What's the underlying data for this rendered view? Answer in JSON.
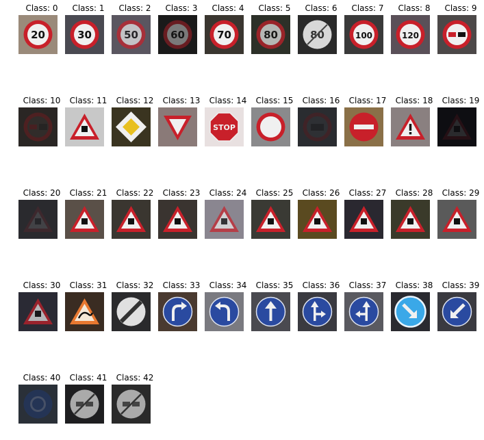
{
  "grid": {
    "label_prefix": "Class: ",
    "cells": [
      {
        "label": "Class: 0",
        "sign": "speed",
        "text": "20",
        "bg": "#9a8a7a"
      },
      {
        "label": "Class: 1",
        "sign": "speed",
        "text": "30",
        "bg": "#4a4a52"
      },
      {
        "label": "Class: 2",
        "sign": "speed",
        "text": "50",
        "bg": "#5a5660",
        "dim": true
      },
      {
        "label": "Class: 3",
        "sign": "speed",
        "text": "60",
        "bg": "#1a1a1a",
        "dark": true
      },
      {
        "label": "Class: 4",
        "sign": "speed",
        "text": "70",
        "bg": "#3a3630"
      },
      {
        "label": "Class: 5",
        "sign": "speed",
        "text": "80",
        "bg": "#2c3028",
        "dim": true
      },
      {
        "label": "Class: 6",
        "sign": "end-speed",
        "text": "80",
        "bg": "#2a2a2a"
      },
      {
        "label": "Class: 7",
        "sign": "speed",
        "text": "100",
        "bg": "#3a3a3a"
      },
      {
        "label": "Class: 8",
        "sign": "speed",
        "text": "120",
        "bg": "#5a5058"
      },
      {
        "label": "Class: 9",
        "sign": "no-passing",
        "bg": "#4c4848"
      },
      {
        "label": "Class: 10",
        "sign": "no-passing-truck",
        "bg": "#2a2624",
        "dark": true
      },
      {
        "label": "Class: 11",
        "sign": "warning",
        "bg": "#c8c8c8"
      },
      {
        "label": "Class: 12",
        "sign": "priority",
        "bg": "#3a3420"
      },
      {
        "label": "Class: 13",
        "sign": "yield",
        "bg": "#8a7a78"
      },
      {
        "label": "Class: 14",
        "sign": "stop",
        "bg": "#e8e0e0"
      },
      {
        "label": "Class: 15",
        "sign": "no-vehicles",
        "bg": "#8a8a8c"
      },
      {
        "label": "Class: 16",
        "sign": "no-trucks",
        "bg": "#2a2c30",
        "dark": true
      },
      {
        "label": "Class: 17",
        "sign": "no-entry",
        "bg": "#8a7048"
      },
      {
        "label": "Class: 18",
        "sign": "warning-exclaim",
        "bg": "#8a8080"
      },
      {
        "label": "Class: 19",
        "sign": "warning",
        "bg": "#0e0e12",
        "vdark": true
      },
      {
        "label": "Class: 20",
        "sign": "warning",
        "bg": "#2a2a2e",
        "vdark": true
      },
      {
        "label": "Class: 21",
        "sign": "warning",
        "bg": "#5a5048"
      },
      {
        "label": "Class: 22",
        "sign": "warning",
        "bg": "#3a3630"
      },
      {
        "label": "Class: 23",
        "sign": "warning",
        "bg": "#3a3430"
      },
      {
        "label": "Class: 24",
        "sign": "warning",
        "bg": "#8a8690",
        "dim": true
      },
      {
        "label": "Class: 25",
        "sign": "warning",
        "bg": "#3a3a34"
      },
      {
        "label": "Class: 26",
        "sign": "warning",
        "bg": "#5a4a20"
      },
      {
        "label": "Class: 27",
        "sign": "warning",
        "bg": "#2a2830"
      },
      {
        "label": "Class: 28",
        "sign": "warning",
        "bg": "#3a3a2a"
      },
      {
        "label": "Class: 29",
        "sign": "warning",
        "bg": "#5a5a5a"
      },
      {
        "label": "Class: 30",
        "sign": "warning",
        "bg": "#2a2a34",
        "dim": true
      },
      {
        "label": "Class: 31",
        "sign": "warning-orange",
        "bg": "#3a2c22"
      },
      {
        "label": "Class: 32",
        "sign": "end-restriction",
        "bg": "#2a2a2c"
      },
      {
        "label": "Class: 33",
        "sign": "blue-turn-right",
        "bg": "#4a3a30"
      },
      {
        "label": "Class: 34",
        "sign": "blue-turn-left",
        "bg": "#7a7a80"
      },
      {
        "label": "Class: 35",
        "sign": "blue-ahead",
        "bg": "#4a4a50"
      },
      {
        "label": "Class: 36",
        "sign": "blue-ahead-right",
        "bg": "#3a3a40"
      },
      {
        "label": "Class: 37",
        "sign": "blue-ahead-left",
        "bg": "#5a5a60"
      },
      {
        "label": "Class: 38",
        "sign": "blue-keep-right",
        "bg": "#2a2a30",
        "bright": true
      },
      {
        "label": "Class: 39",
        "sign": "blue-keep-left",
        "bg": "#3a3a40"
      },
      {
        "label": "Class: 40",
        "sign": "blue-roundabout",
        "bg": "#2a3038",
        "dark": true
      },
      {
        "label": "Class: 41",
        "sign": "end-no-passing",
        "bg": "#1e1e20"
      },
      {
        "label": "Class: 42",
        "sign": "end-no-passing-truck",
        "bg": "#2a2a2a"
      }
    ]
  },
  "colors": {
    "red": "#c8202a",
    "white": "#f0f0f0",
    "blue": "#2a4aa0",
    "yellow": "#e8c020",
    "black": "#111111",
    "orange": "#e87830"
  }
}
